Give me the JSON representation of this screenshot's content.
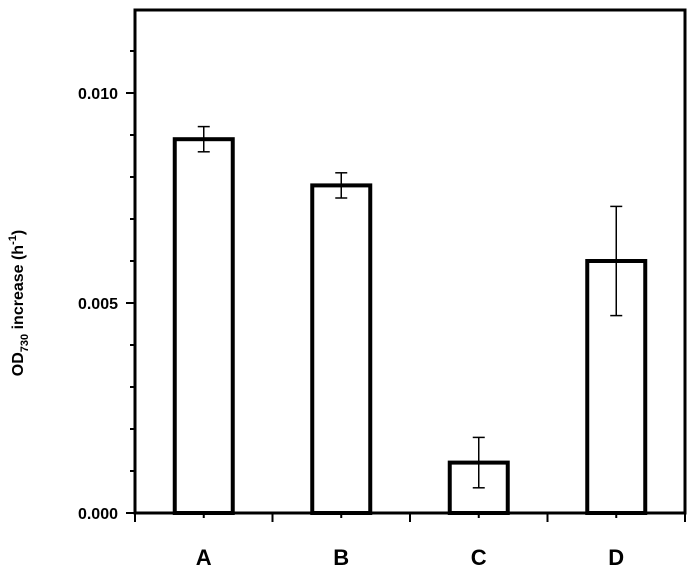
{
  "chart_data": {
    "type": "bar",
    "categories": [
      "A",
      "B",
      "C",
      "D"
    ],
    "values": [
      0.0089,
      0.0078,
      0.0012,
      0.006
    ],
    "errors": [
      0.0003,
      0.0003,
      0.0006,
      0.0013
    ],
    "title": "",
    "xlabel": "",
    "ylabel": {
      "main": "OD",
      "sub": "730",
      "rest": " increase (h",
      "sup": "-1",
      "end": ")"
    },
    "ylim": [
      0,
      0.01
    ],
    "yticks": [
      "0.000",
      "0.005",
      "0.010"
    ],
    "ytick_values": [
      0,
      0.005,
      0.01
    ],
    "grid": false,
    "legend": "none",
    "colors": {
      "bar_fill": "#ffffff",
      "stroke": "#000000"
    }
  }
}
